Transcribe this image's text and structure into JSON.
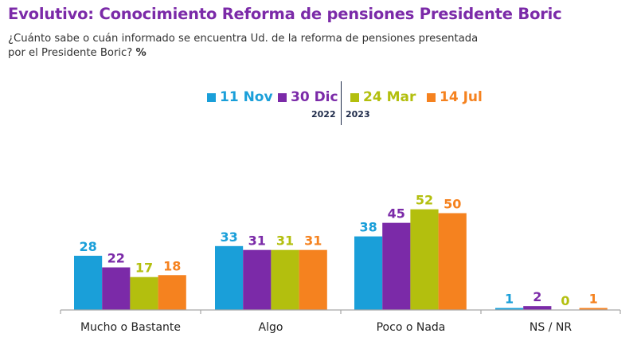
{
  "title": "Evolutivo: Conocimiento Reforma de pensiones Presidente Boric",
  "subtitle_line1": "¿Cuánto sabe o cuán informado se encuentra Ud. de la reforma de pensiones presentada",
  "subtitle_line2": "por el Presidente Boric?",
  "subtitle_unit": "%",
  "legend": {
    "year_left": "2022",
    "year_right": "2023"
  },
  "chart_data": {
    "type": "bar",
    "title": "Evolutivo: Conocimiento Reforma de pensiones Presidente Boric",
    "xlabel": "",
    "ylabel": "%",
    "ylim": [
      0,
      60
    ],
    "grid": false,
    "legend_position": "top-center",
    "categories": [
      "Mucho o Bastante",
      "Algo",
      "Poco o Nada",
      "NS / NR"
    ],
    "series": [
      {
        "name": "11 Nov",
        "year": "2022",
        "color": "#1a9fd9",
        "values": [
          28,
          33,
          38,
          1
        ]
      },
      {
        "name": "30 Dic",
        "year": "2022",
        "color": "#7b2aa8",
        "values": [
          22,
          31,
          45,
          2
        ]
      },
      {
        "name": "24 Mar",
        "year": "2023",
        "color": "#b3bf0e",
        "values": [
          17,
          31,
          52,
          0
        ]
      },
      {
        "name": "14 Jul",
        "year": "2023",
        "color": "#f5821f",
        "values": [
          18,
          31,
          50,
          1
        ]
      }
    ]
  }
}
